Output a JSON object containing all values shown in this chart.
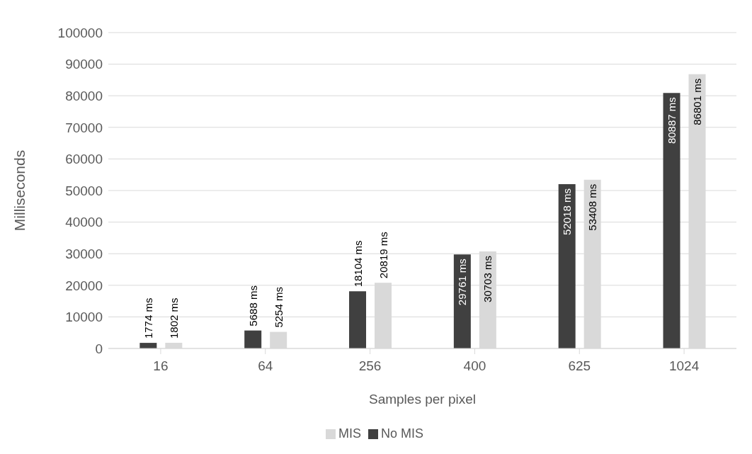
{
  "chart_data": {
    "type": "bar",
    "xlabel": "Samples per pixel",
    "ylabel": "Milliseconds",
    "categories": [
      "16",
      "64",
      "256",
      "400",
      "625",
      "1024"
    ],
    "series": [
      {
        "name": "No MIS",
        "color": "#404040",
        "values": [
          1774,
          5688,
          18104,
          29761,
          52018,
          80887
        ],
        "value_labels": [
          "1774 ms",
          "5688 ms",
          "18104 ms",
          "29761 ms",
          "52018 ms",
          "80887 ms"
        ]
      },
      {
        "name": "MIS",
        "color": "#d9d9d9",
        "values": [
          1802,
          5254,
          20819,
          30703,
          53408,
          86801
        ],
        "value_labels": [
          "1802 ms",
          "5254 ms",
          "20819 ms",
          "30703 ms",
          "53408 ms",
          "86801 ms"
        ]
      }
    ],
    "ylim": [
      0,
      100000
    ],
    "yticks": [
      0,
      10000,
      20000,
      30000,
      40000,
      50000,
      60000,
      70000,
      80000,
      90000,
      100000
    ],
    "grid": "y",
    "legend": "bottom"
  }
}
